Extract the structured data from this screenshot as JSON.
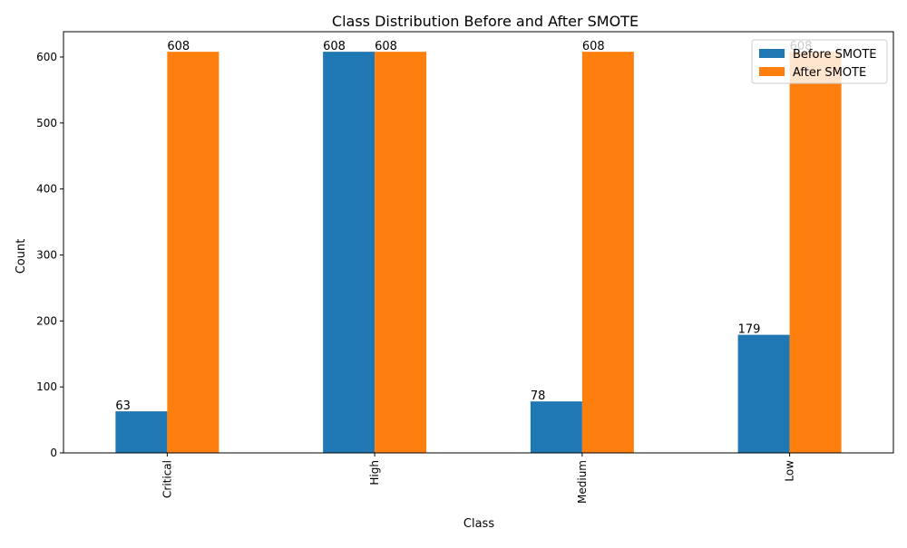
{
  "chart_data": {
    "type": "bar",
    "title": "Class Distribution Before and After SMOTE",
    "xlabel": "Class",
    "ylabel": "Count",
    "categories": [
      "Critical",
      "High",
      "Medium",
      "Low"
    ],
    "series": [
      {
        "name": "Before SMOTE",
        "values": [
          63,
          608,
          78,
          179
        ],
        "color": "#1f77b4"
      },
      {
        "name": "After SMOTE",
        "values": [
          608,
          608,
          608,
          608
        ],
        "color": "#ff7f0e"
      }
    ],
    "data_labels": [
      {
        "category": "Critical",
        "text": "63"
      },
      {
        "category": "Critical",
        "text": "608"
      },
      {
        "category": "High",
        "text": "608"
      },
      {
        "category": "High",
        "text": "608"
      },
      {
        "category": "Medium",
        "text": "78"
      },
      {
        "category": "Medium",
        "text": "608"
      },
      {
        "category": "Low",
        "text": "179"
      },
      {
        "category": "Low",
        "text": "608"
      }
    ],
    "ylim": [
      0,
      638.4
    ],
    "yticks": [
      0,
      100,
      200,
      300,
      400,
      500,
      600
    ],
    "grid": false,
    "legend_position": "top-right"
  }
}
